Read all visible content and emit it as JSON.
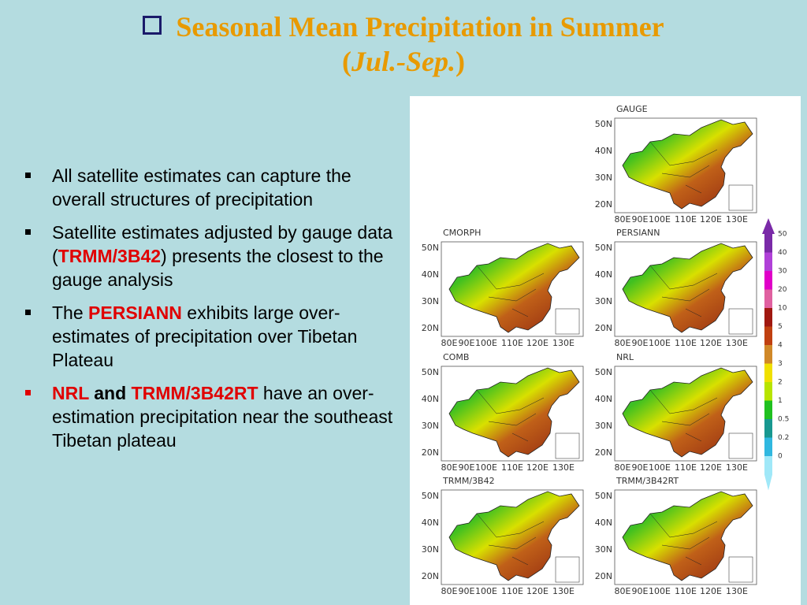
{
  "title": {
    "line1": "Seasonal Mean Precipitation in Summer",
    "line2_open": "(",
    "line2_italic": "Jul.-Sep.",
    "line2_close": ")"
  },
  "bullets": [
    {
      "marker_color": "#000000",
      "runs": [
        {
          "text": " All satellite estimates can capture the overall structures of precipitation",
          "style": "normal"
        }
      ]
    },
    {
      "marker_color": "#000000",
      "runs": [
        {
          "text": "Satellite estimates adjusted by gauge data (",
          "style": "normal"
        },
        {
          "text": "TRMM/3B42",
          "style": "red-bold"
        },
        {
          "text": ") presents the closest to the gauge analysis",
          "style": "normal"
        }
      ]
    },
    {
      "marker_color": "#000000",
      "runs": [
        {
          "text": "The ",
          "style": "normal"
        },
        {
          "text": "PERSIANN",
          "style": "red-bold"
        },
        {
          "text": " exhibits large over-estimates of precipitation over Tibetan Plateau",
          "style": "normal"
        }
      ]
    },
    {
      "marker_color": "#e00000",
      "runs": [
        {
          "text": "NRL",
          "style": "red-bold"
        },
        {
          "text": " and ",
          "style": "bold"
        },
        {
          "text": "TRMM/3B42RT",
          "style": "red-bold"
        },
        {
          "text": "  have an over-estimation precipitation near the southeast Tibetan plateau",
          "style": "normal"
        }
      ]
    }
  ],
  "maps": {
    "panels": [
      "GAUGE",
      "CMORPH",
      "PERSIANN",
      "COMB",
      "NRL",
      "TRMM/3B42",
      "TRMM/3B42RT"
    ],
    "lat_labels": [
      "50N",
      "40N",
      "30N",
      "20N"
    ],
    "lon_labels": [
      "80E",
      "90E",
      "100E",
      "110E",
      "120E",
      "130E"
    ],
    "colorbar": {
      "labels": [
        "50",
        "40",
        "30",
        "20",
        "10",
        "5",
        "4",
        "3",
        "2",
        "1",
        "0.5",
        "0.2",
        "0"
      ],
      "colors": [
        "#7a2aa8",
        "#b040d8",
        "#e000c8",
        "#e060a0",
        "#a01810",
        "#c04010",
        "#d08828",
        "#f0e000",
        "#b8e400",
        "#20c020",
        "#189890",
        "#30b8e0",
        "#a0e8f8"
      ]
    }
  }
}
